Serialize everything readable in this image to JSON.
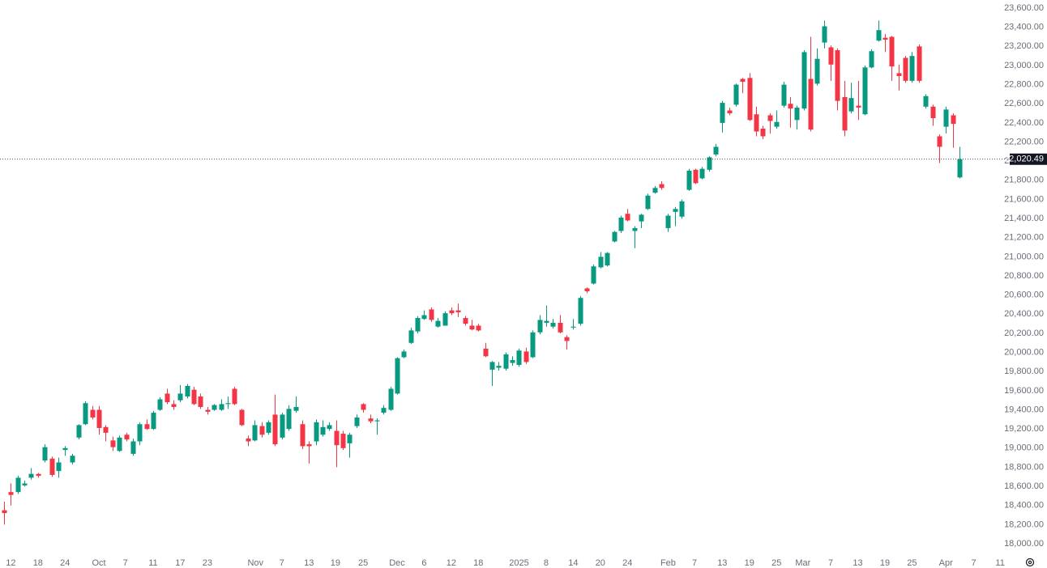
{
  "chart_data": {
    "type": "candlestick",
    "up_color": "#089981",
    "down_color": "#f23645",
    "grid": false,
    "open": [
      18350,
      18540,
      18540,
      18610,
      18690,
      18730,
      18870,
      18890,
      18760,
      18980,
      18850,
      19110,
      19250,
      19400,
      19400,
      19220,
      19080,
      18970,
      19140,
      18940,
      19070,
      19250,
      19200,
      19400,
      19570,
      19460,
      19500,
      19540,
      19610,
      19540,
      19400,
      19400,
      19400,
      19460,
      19620,
      19400,
      19100,
      19080,
      19230,
      19160,
      19350,
      19110,
      19200,
      19390,
      19250,
      19040,
      19070,
      19140,
      19200,
      19180,
      19150,
      19050,
      19230,
      19460,
      19310,
      19280,
      19370,
      19400,
      19570,
      19950,
      20100,
      20220,
      20350,
      20450,
      20270,
      20280,
      20440,
      20440,
      20360,
      20280,
      20280,
      20040,
      19820,
      19840,
      19830,
      19890,
      19870,
      20010,
      19950,
      20210,
      20310,
      20270,
      20310,
      20160,
      20260,
      20300,
      20670,
      20720,
      20890,
      20910,
      21160,
      21270,
      21450,
      21270,
      21370,
      21500,
      21670,
      21760,
      21300,
      21470,
      21420,
      21700,
      21910,
      21820,
      21910,
      22070,
      22400,
      22530,
      22590,
      22860,
      22870,
      22490,
      22340,
      22480,
      22360,
      22580,
      22600,
      22430,
      22550,
      22860,
      22810,
      23240,
      23190,
      23160,
      22670,
      22520,
      22580,
      22490,
      22980,
      23260,
      23290,
      23300,
      22920,
      23080,
      22840,
      23200,
      22570,
      22570,
      22260,
      22360,
      22480,
      21830
    ],
    "high": [
      18440,
      18630,
      18710,
      18660,
      18790,
      18740,
      19040,
      18910,
      18900,
      19020,
      18940,
      19250,
      19490,
      19440,
      19440,
      19240,
      19120,
      19130,
      19160,
      19100,
      19270,
      19300,
      19390,
      19530,
      19620,
      19500,
      19660,
      19670,
      19640,
      19570,
      19430,
      19460,
      19510,
      19540,
      19640,
      19410,
      19130,
      19290,
      19270,
      19290,
      19560,
      19370,
      19450,
      19540,
      19290,
      19070,
      19300,
      19290,
      19270,
      19290,
      19180,
      19160,
      19350,
      19470,
      19350,
      19310,
      19450,
      19640,
      19950,
      20030,
      20260,
      20380,
      20440,
      20470,
      20360,
      20430,
      20470,
      20510,
      20380,
      20340,
      20300,
      20100,
      19910,
      19900,
      20000,
      19960,
      20040,
      20050,
      20230,
      20390,
      20490,
      20350,
      20390,
      20180,
      20350,
      20590,
      20680,
      20920,
      21050,
      21050,
      21270,
      21430,
      21500,
      21320,
      21450,
      21660,
      21740,
      21790,
      21450,
      21520,
      21600,
      21920,
      21920,
      21940,
      22050,
      22180,
      22630,
      22560,
      22810,
      22870,
      22920,
      22570,
      22370,
      22500,
      22530,
      22830,
      22670,
      22580,
      23160,
      23300,
      23180,
      23470,
      23210,
      23180,
      22840,
      22820,
      22840,
      23000,
      23170,
      23470,
      23330,
      23310,
      23010,
      23100,
      23140,
      23220,
      22700,
      22590,
      22280,
      22570,
      22500,
      22150
    ],
    "low": [
      18200,
      18400,
      18520,
      18600,
      18670,
      18690,
      18850,
      18700,
      18690,
      18920,
      18830,
      19090,
      19240,
      19300,
      19140,
      19070,
      18970,
      18960,
      19070,
      18920,
      19030,
      19190,
      19190,
      19390,
      19460,
      19400,
      19480,
      19520,
      19450,
      19410,
      19350,
      19390,
      19390,
      19410,
      19450,
      19230,
      19020,
      19070,
      19110,
      19140,
      19020,
      19090,
      19180,
      19370,
      18990,
      18840,
      19030,
      19120,
      19180,
      18800,
      18980,
      18900,
      19210,
      19370,
      19260,
      19140,
      19350,
      19390,
      19560,
      19940,
      20090,
      20200,
      20340,
      20320,
      20260,
      20280,
      20390,
      20370,
      20280,
      20230,
      20220,
      19950,
      19650,
      19810,
      19810,
      19860,
      19850,
      19880,
      19940,
      20190,
      20270,
      20250,
      20200,
      20030,
      20240,
      20280,
      20620,
      20710,
      20880,
      20900,
      21150,
      21250,
      21370,
      21090,
      21300,
      21490,
      21660,
      21700,
      21260,
      21320,
      21400,
      21690,
      21760,
      21810,
      21890,
      22050,
      22300,
      22480,
      22570,
      22710,
      22420,
      22260,
      22230,
      22290,
      22340,
      22560,
      22350,
      22330,
      22530,
      22310,
      22790,
      23180,
      22840,
      22530,
      22260,
      22500,
      22430,
      22480,
      22970,
      23250,
      23140,
      22840,
      22740,
      22820,
      22820,
      22820,
      22550,
      22370,
      21980,
      22290,
      22140,
      21820
    ],
    "close": [
      18320,
      18510,
      18690,
      18630,
      18730,
      18710,
      19010,
      18720,
      18850,
      19000,
      18920,
      19240,
      19470,
      19320,
      19210,
      19160,
      19010,
      19110,
      19090,
      19070,
      19250,
      19200,
      19370,
      19510,
      19480,
      19430,
      19570,
      19650,
      19460,
      19430,
      19380,
      19450,
      19460,
      19470,
      19460,
      19240,
      19070,
      19240,
      19140,
      19270,
      19040,
      19350,
      19410,
      19430,
      19020,
      19020,
      19270,
      19220,
      19240,
      19030,
      19000,
      19140,
      19320,
      19400,
      19280,
      19290,
      19420,
      19620,
      19940,
      20010,
      20230,
      20360,
      20390,
      20340,
      20330,
      20410,
      20410,
      20420,
      20300,
      20240,
      20230,
      19960,
      19900,
      19860,
      19980,
      19920,
      20020,
      19900,
      20210,
      20340,
      20330,
      20310,
      20210,
      20120,
      20270,
      20570,
      20640,
      20900,
      21000,
      21040,
      21260,
      21410,
      21380,
      21300,
      21440,
      21640,
      21720,
      21720,
      21430,
      21500,
      21580,
      21900,
      21770,
      21920,
      22040,
      22150,
      22610,
      22500,
      22800,
      22830,
      22430,
      22310,
      22260,
      22420,
      22410,
      22800,
      22550,
      22560,
      23140,
      22330,
      23070,
      23410,
      23010,
      22630,
      22320,
      22660,
      22560,
      22980,
      23150,
      23370,
      23270,
      22990,
      22890,
      22840,
      23100,
      22840,
      22680,
      22450,
      22150,
      22540,
      22390,
      22020.49
    ],
    "ylim": [
      17890,
      23685
    ],
    "yticks": [
      {
        "value": 18000,
        "label": "18,000.00"
      },
      {
        "value": 18200,
        "label": "18,200.00"
      },
      {
        "value": 18400,
        "label": "18,400.00"
      },
      {
        "value": 18600,
        "label": "18,600.00"
      },
      {
        "value": 18800,
        "label": "18,800.00"
      },
      {
        "value": 19000,
        "label": "19,000.00"
      },
      {
        "value": 19200,
        "label": "19,200.00"
      },
      {
        "value": 19400,
        "label": "19,400.00"
      },
      {
        "value": 19600,
        "label": "19,600.00"
      },
      {
        "value": 19800,
        "label": "19,800.00"
      },
      {
        "value": 20000,
        "label": "20,000.00"
      },
      {
        "value": 20200,
        "label": "20,200.00"
      },
      {
        "value": 20400,
        "label": "20,400.00"
      },
      {
        "value": 20600,
        "label": "20,600.00"
      },
      {
        "value": 20800,
        "label": "20,800.00"
      },
      {
        "value": 21000,
        "label": "21,000.00"
      },
      {
        "value": 21200,
        "label": "21,200.00"
      },
      {
        "value": 21400,
        "label": "21,400.00"
      },
      {
        "value": 21600,
        "label": "21,600.00"
      },
      {
        "value": 21800,
        "label": "21,800.00"
      },
      {
        "value": 22000,
        "label": "22,000.00"
      },
      {
        "value": 22200,
        "label": "22,200.00"
      },
      {
        "value": 22400,
        "label": "22,400.00"
      },
      {
        "value": 22600,
        "label": "22,600.00"
      },
      {
        "value": 22800,
        "label": "22,800.00"
      },
      {
        "value": 23000,
        "label": "23,000.00"
      },
      {
        "value": 23200,
        "label": "23,200.00"
      },
      {
        "value": 23400,
        "label": "23,400.00"
      },
      {
        "value": 23600,
        "label": "23,600.00"
      }
    ],
    "xlim": [
      -0.6,
      148.3
    ],
    "xticks": [
      {
        "value": 1,
        "label": "12"
      },
      {
        "value": 5,
        "label": "18"
      },
      {
        "value": 9,
        "label": "24"
      },
      {
        "value": 14,
        "label": "Oct"
      },
      {
        "value": 17.9,
        "label": "7"
      },
      {
        "value": 22,
        "label": "11"
      },
      {
        "value": 26,
        "label": "17"
      },
      {
        "value": 30,
        "label": "23"
      },
      {
        "value": 37.1,
        "label": "Nov"
      },
      {
        "value": 41,
        "label": "7"
      },
      {
        "value": 45,
        "label": "13"
      },
      {
        "value": 48.9,
        "label": "19"
      },
      {
        "value": 53,
        "label": "25"
      },
      {
        "value": 58,
        "label": "Dec"
      },
      {
        "value": 62,
        "label": "6"
      },
      {
        "value": 66,
        "label": "12"
      },
      {
        "value": 70,
        "label": "18"
      },
      {
        "value": 76,
        "label": "2025"
      },
      {
        "value": 80,
        "label": "8"
      },
      {
        "value": 84,
        "label": "14"
      },
      {
        "value": 88,
        "label": "20"
      },
      {
        "value": 92,
        "label": "24"
      },
      {
        "value": 98,
        "label": "Feb"
      },
      {
        "value": 101.9,
        "label": "7"
      },
      {
        "value": 106,
        "label": "13"
      },
      {
        "value": 110,
        "label": "19"
      },
      {
        "value": 114,
        "label": "25"
      },
      {
        "value": 117.9,
        "label": "Mar"
      },
      {
        "value": 122,
        "label": "7"
      },
      {
        "value": 126,
        "label": "13"
      },
      {
        "value": 130,
        "label": "19"
      },
      {
        "value": 134,
        "label": "25"
      },
      {
        "value": 139,
        "label": "Apr"
      },
      {
        "value": 143.1,
        "label": "7"
      },
      {
        "value": 147,
        "label": "11"
      }
    ],
    "last_price": {
      "value": 22020.49,
      "label": "22,020.49"
    }
  }
}
